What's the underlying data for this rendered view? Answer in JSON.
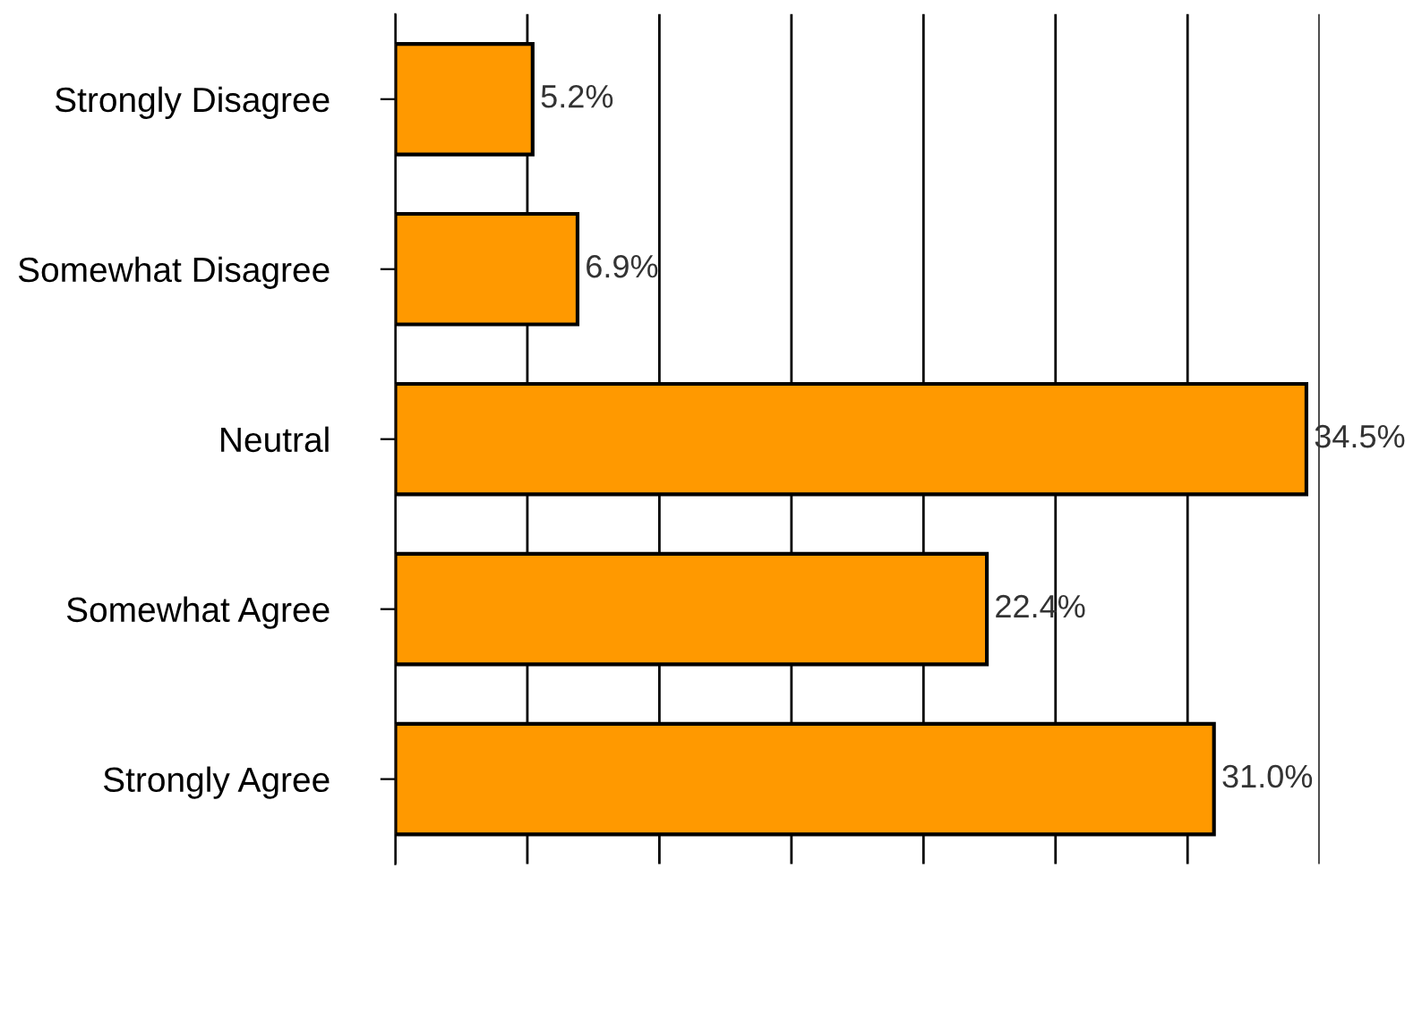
{
  "chart_data": {
    "type": "bar",
    "orientation": "horizontal",
    "categories": [
      "Strongly Disagree",
      "Somewhat Disagree",
      "Neutral",
      "Somewhat Agree",
      "Strongly Agree"
    ],
    "values": [
      5.2,
      6.9,
      34.5,
      22.4,
      31.0
    ],
    "value_labels": [
      "5.2%",
      "6.9%",
      "34.5%",
      "22.4%",
      "31.0%"
    ],
    "color": "#ff9900",
    "xlim": [
      0,
      35
    ],
    "xticks": [
      {
        "value": 0,
        "label": null
      },
      {
        "value": 5,
        "label": null
      },
      {
        "value": 10,
        "label": null
      },
      {
        "value": 15,
        "label": null
      },
      {
        "value": 20,
        "label": null
      },
      {
        "value": 25,
        "label": null
      },
      {
        "value": 30,
        "label": null
      },
      {
        "value": 35,
        "label": null
      }
    ],
    "grid": "x",
    "tick_labels": "y",
    "legend": false
  }
}
